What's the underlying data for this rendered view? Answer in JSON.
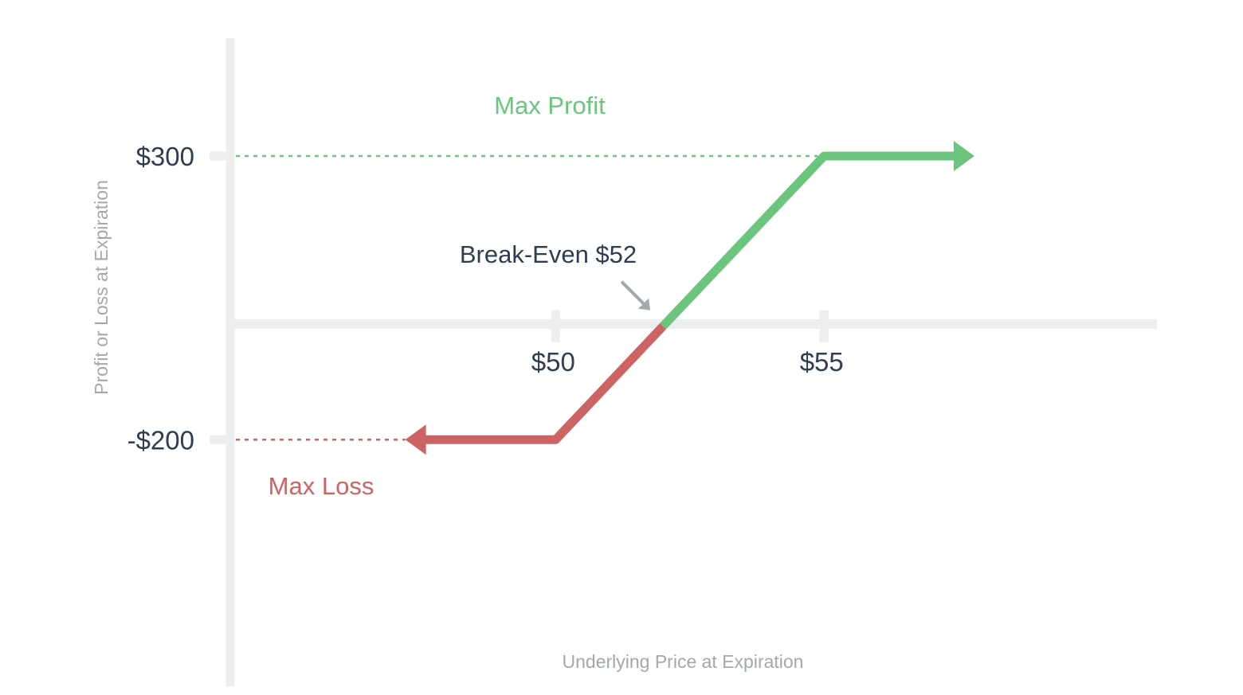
{
  "chart_data": {
    "type": "line",
    "xlabel": "Underlying Price at Expiration",
    "ylabel": "Profit or Loss at Expiration",
    "x_ticks": [
      {
        "value": 50,
        "label": "$50"
      },
      {
        "value": 55,
        "label": "$55"
      }
    ],
    "y_ticks": [
      {
        "value": 300,
        "label": "$300"
      },
      {
        "value": -200,
        "label": "-$200"
      }
    ],
    "xlim": [
      44,
      61.2
    ],
    "ylim": [
      -650,
      575
    ],
    "series": [
      {
        "points": [
          {
            "x": 47.2,
            "y": -200
          },
          {
            "x": 50,
            "y": -200
          },
          {
            "x": 52,
            "y": 0
          },
          {
            "x": 55,
            "y": 300
          },
          {
            "x": 57.8,
            "y": 300
          }
        ],
        "loss_color": "#cd6362",
        "profit_color": "#6cc57c"
      }
    ],
    "annotations": {
      "max_profit": {
        "label": "Max Profit",
        "value": 300,
        "color": "#6cc57c"
      },
      "max_loss": {
        "label": "Max Loss",
        "value": -200,
        "color": "#cd6362"
      },
      "break_even": {
        "label": "Break-Even $52",
        "value": 52,
        "color": "#2f3e4f"
      }
    },
    "axis_color": "#edeef0",
    "text_color": "#2f3e4f",
    "legend": "none",
    "grid": false
  }
}
